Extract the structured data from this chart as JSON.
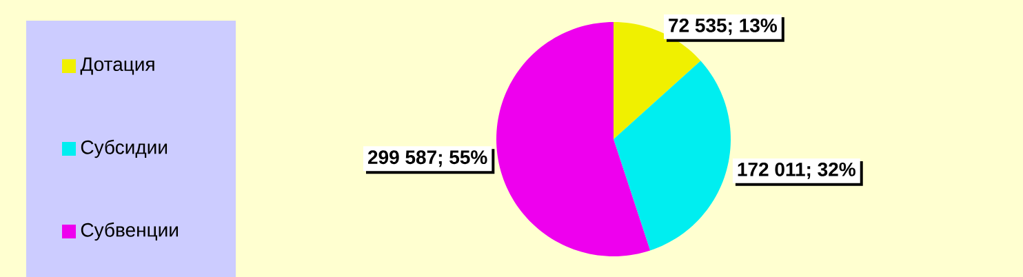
{
  "chart_data": {
    "type": "pie",
    "categories": [
      "Дотация",
      "Субсидии",
      "Субвенции"
    ],
    "values": [
      72535,
      172011,
      299587
    ],
    "colors": [
      "#f0f000",
      "#00eef0",
      "#ee00ee"
    ],
    "value_labels": [
      "72 535; 13%",
      "172 011; 32%",
      "299 587; 55%"
    ],
    "legend": "left"
  }
}
